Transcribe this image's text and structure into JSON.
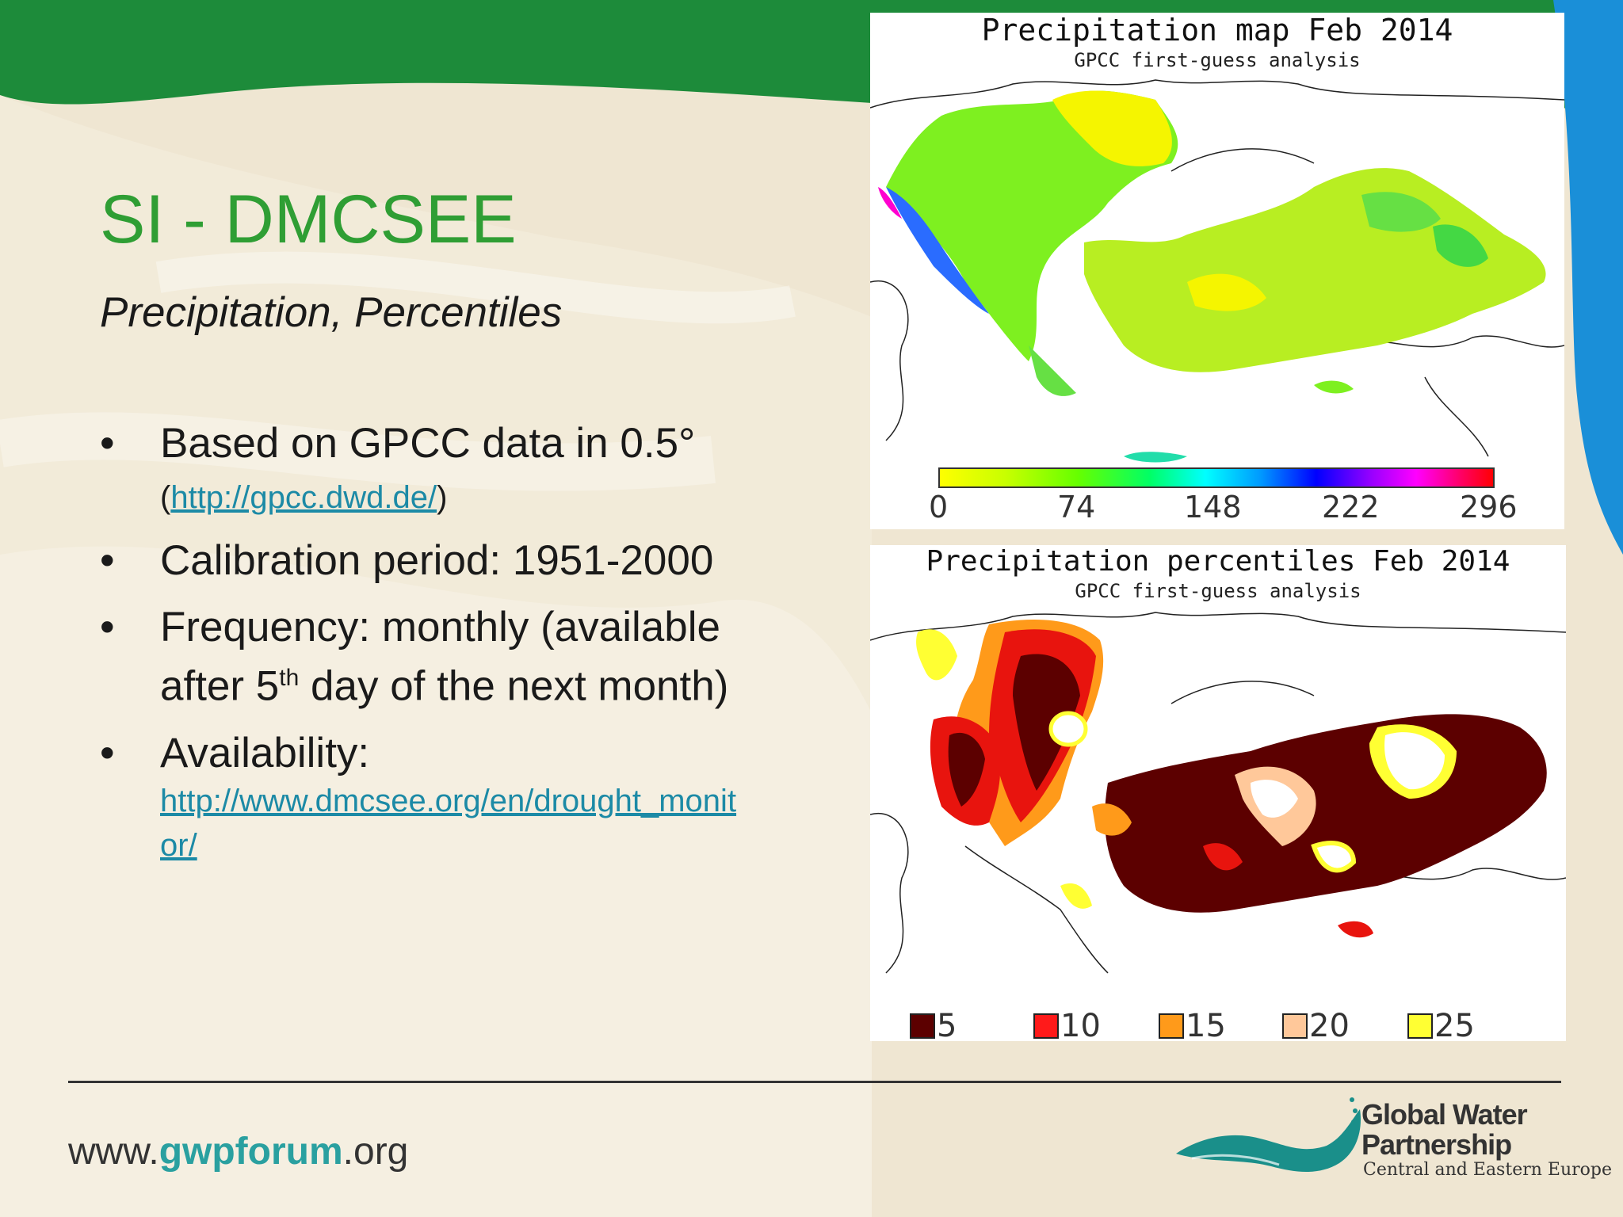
{
  "slide": {
    "title": "SI - DMCSEE",
    "subtitle": "Precipitation, Percentiles",
    "bullets": [
      {
        "text": "Based on GPCC data in 0.5°",
        "link_open": "(",
        "link": "http://gpcc.dwd.de/",
        "link_close": ")"
      },
      {
        "text": "Calibration period: 1951-2000"
      },
      {
        "text_a": "Frequency: monthly (available",
        "text_b": "after 5",
        "sup": "th",
        "text_c": " day of the next month)"
      },
      {
        "text": "Availability:",
        "link_a": "http://www.dmcsee.org/en/drought_monit",
        "link_b": "or/"
      }
    ],
    "bullet_glyph": "•"
  },
  "map_top": {
    "title": "Precipitation map Feb 2014",
    "subtitle": "GPCC first-guess analysis",
    "scale_labels": [
      "0",
      "74",
      "148",
      "222",
      "296"
    ],
    "scale_colors": [
      "#ffff00",
      "#c8ff00",
      "#66ff00",
      "#00ff66",
      "#00ffff",
      "#0099ff",
      "#0000ff",
      "#9900ff",
      "#ff00ff",
      "#ff0066",
      "#ff0000"
    ]
  },
  "map_bottom": {
    "title": "Precipitation percentiles Feb 2014",
    "subtitle": "GPCC first-guess analysis",
    "legend": [
      {
        "label": "5",
        "color": "#5c0000"
      },
      {
        "label": "10",
        "color": "#ff1a1a"
      },
      {
        "label": "15",
        "color": "#ff9a1a"
      },
      {
        "label": "20",
        "color": "#ffc89a"
      },
      {
        "label": "25",
        "color": "#ffff33"
      }
    ]
  },
  "footer": {
    "www_prefix": "www.",
    "www_brand": "gwpforum",
    "www_suffix": ".org",
    "logo_line1": "Global Water",
    "logo_line2": "Partnership",
    "logo_line3": "Central and Eastern Europe"
  }
}
